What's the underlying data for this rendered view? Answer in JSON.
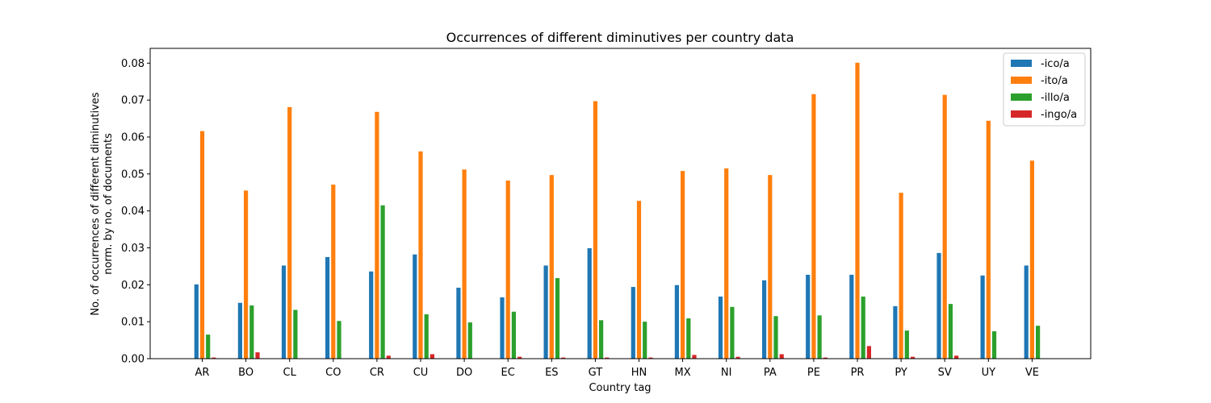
{
  "chart_data": {
    "type": "bar",
    "title": "Occurrences of different diminutives per country data",
    "xlabel": "Country tag",
    "ylabel_line1": "No. of occurrences of different diminutives",
    "ylabel_line2": "norm. by no. of documents",
    "ylim": [
      0,
      0.084
    ],
    "yticks": [
      0.0,
      0.01,
      0.02,
      0.03,
      0.04,
      0.05,
      0.06,
      0.07,
      0.08
    ],
    "ytick_labels": [
      "0.00",
      "0.01",
      "0.02",
      "0.03",
      "0.04",
      "0.05",
      "0.06",
      "0.07",
      "0.08"
    ],
    "grid": false,
    "legend_position": "top-right",
    "categories": [
      "AR",
      "BO",
      "CL",
      "CO",
      "CR",
      "CU",
      "DO",
      "EC",
      "ES",
      "GT",
      "HN",
      "MX",
      "NI",
      "PA",
      "PE",
      "PR",
      "PY",
      "SV",
      "UY",
      "VE"
    ],
    "series": [
      {
        "name": "-ico/a",
        "color": "#1f77b4",
        "values": [
          0.0202,
          0.0152,
          0.0253,
          0.0276,
          0.0237,
          0.0283,
          0.0193,
          0.0167,
          0.0253,
          0.03,
          0.0195,
          0.02,
          0.0169,
          0.0213,
          0.0228,
          0.0228,
          0.0143,
          0.0287,
          0.0226,
          0.0253
        ]
      },
      {
        "name": "-ito/a",
        "color": "#ff7f0e",
        "values": [
          0.0617,
          0.0456,
          0.0682,
          0.0472,
          0.0669,
          0.0562,
          0.0513,
          0.0483,
          0.0498,
          0.0698,
          0.0428,
          0.0509,
          0.0516,
          0.0498,
          0.0717,
          0.0802,
          0.045,
          0.0715,
          0.0645,
          0.0537
        ]
      },
      {
        "name": "-illo/a",
        "color": "#2ca02c",
        "values": [
          0.0066,
          0.0145,
          0.0133,
          0.0103,
          0.0416,
          0.0121,
          0.0099,
          0.0128,
          0.0219,
          0.0105,
          0.0101,
          0.011,
          0.0141,
          0.0116,
          0.0118,
          0.0169,
          0.0077,
          0.0149,
          0.0075,
          0.009
        ]
      },
      {
        "name": "-ingo/a",
        "color": "#d62728",
        "values": [
          0.0004,
          0.0018,
          0.0002,
          0.0002,
          0.0009,
          0.0013,
          0.0002,
          0.0006,
          0.0004,
          0.0004,
          0.0004,
          0.0011,
          0.0006,
          0.0013,
          0.0004,
          0.0035,
          0.0006,
          0.0009,
          0.0002,
          0.0002
        ]
      }
    ]
  }
}
